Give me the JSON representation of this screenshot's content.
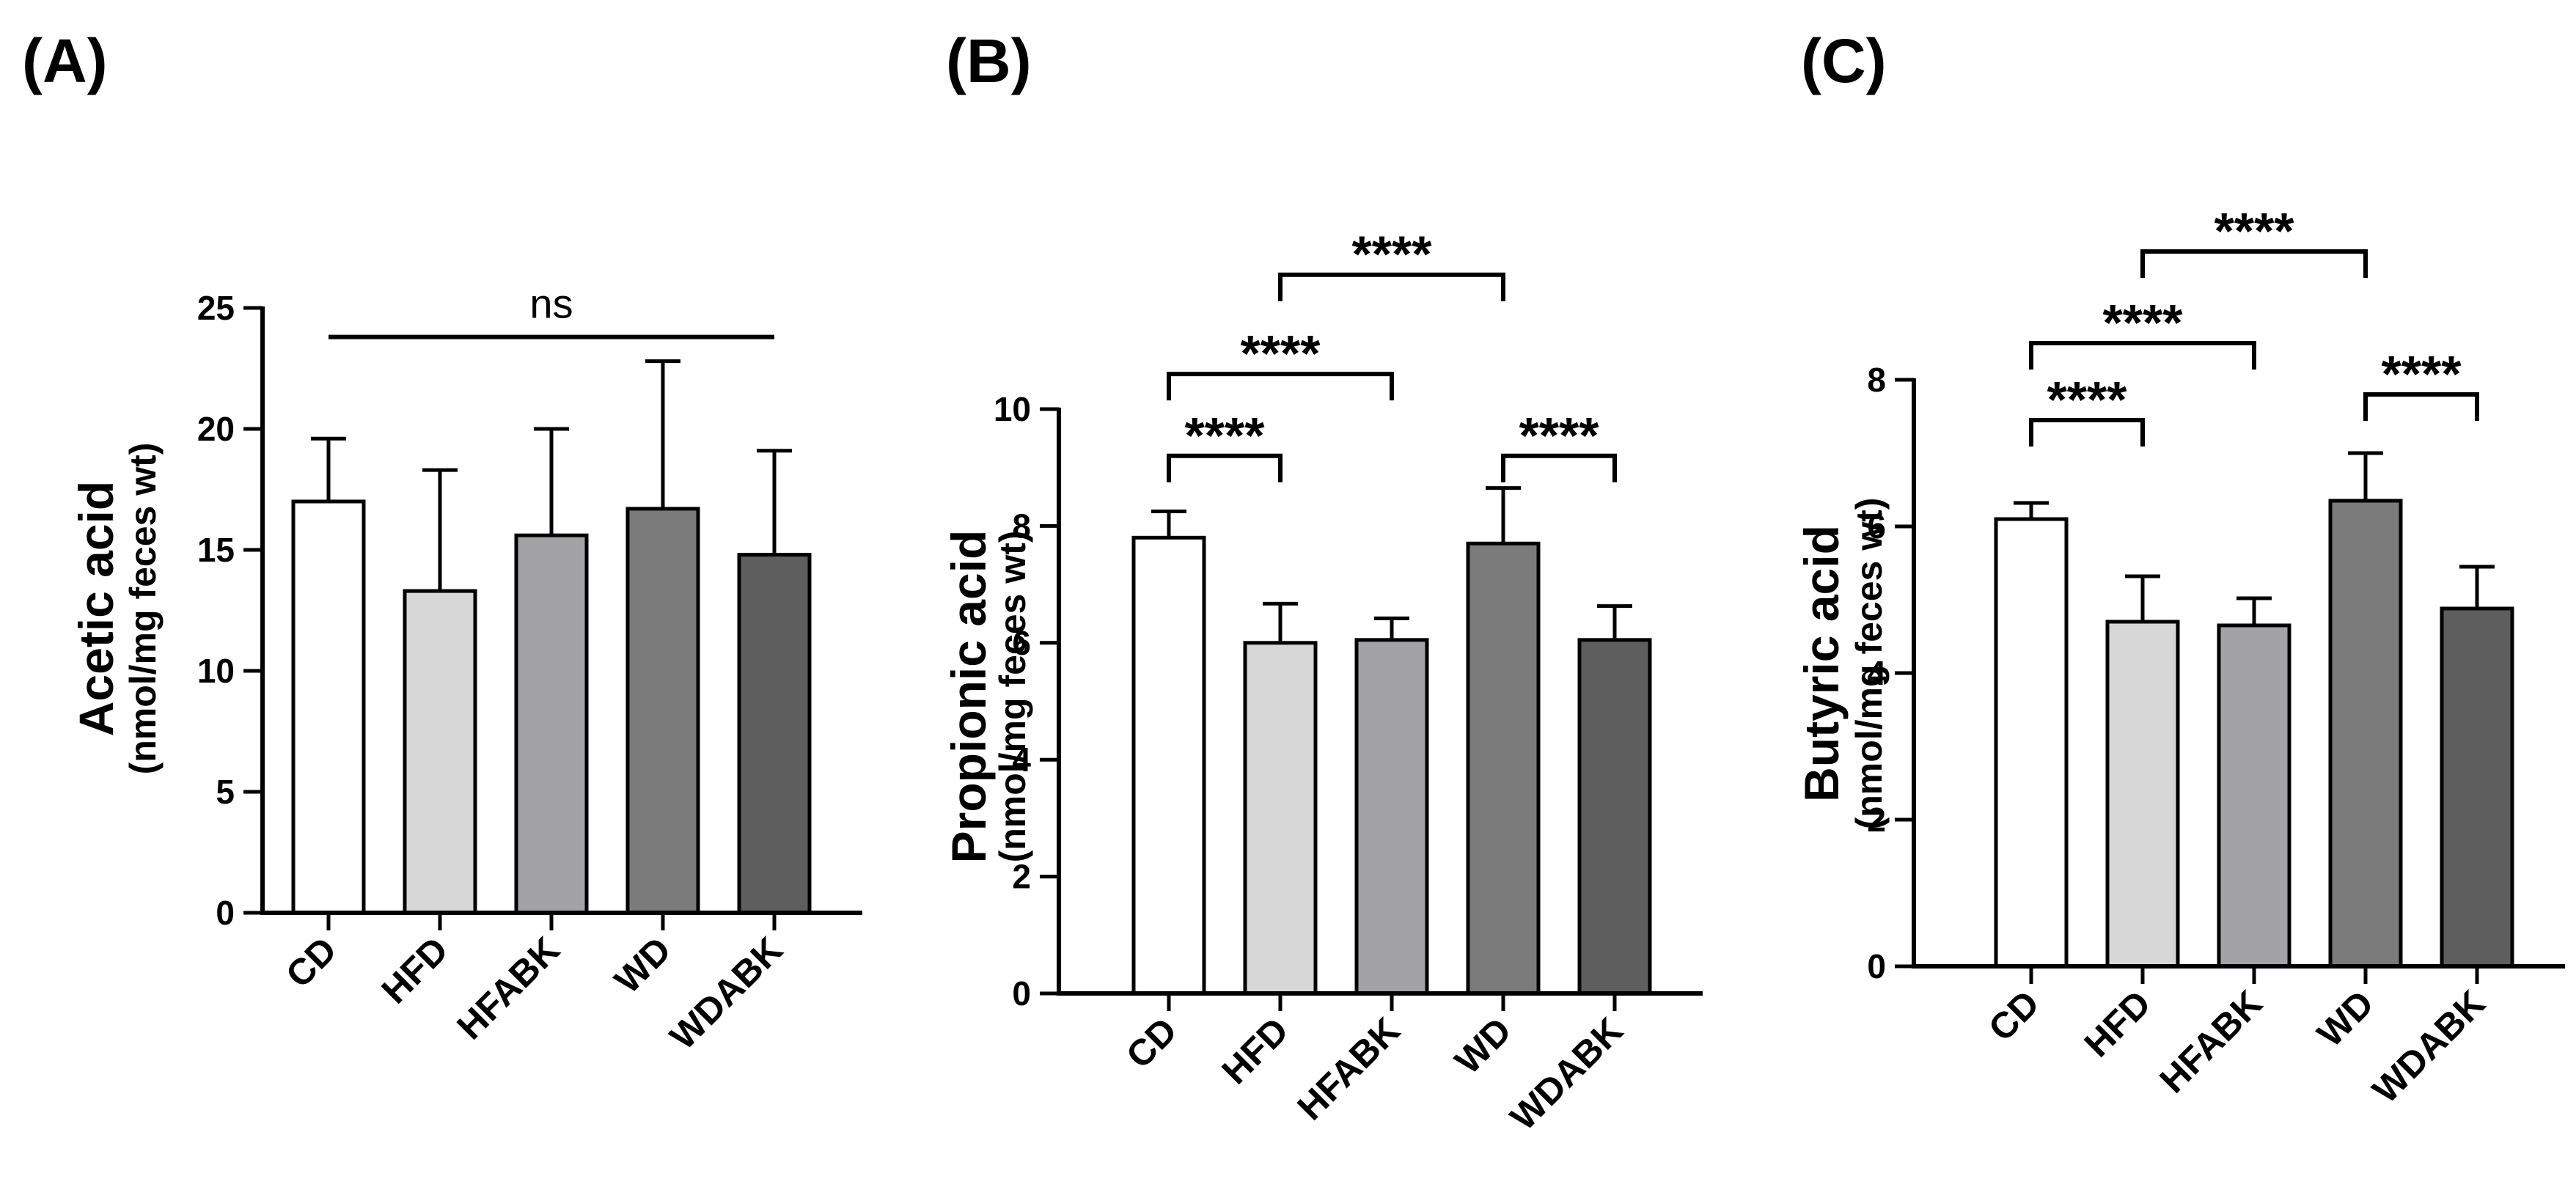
{
  "chart_data": [
    {
      "panel": "(A)",
      "type": "bar",
      "ylabel": "Acetic acid",
      "ylabel_sub": "(nmol/mg feces wt)",
      "categories": [
        "CD",
        "HFD",
        "HFABK",
        "WD",
        "WDABK"
      ],
      "values": [
        17.0,
        13.3,
        15.6,
        16.7,
        14.8
      ],
      "errors": [
        2.6,
        5.0,
        4.4,
        6.1,
        4.3
      ],
      "colors": [
        "#ffffff",
        "#d7d7d7",
        "#a3a3a6",
        "#7b7b7b",
        "#5e5e5e"
      ],
      "ylim": [
        0,
        25
      ],
      "yticks": [
        0,
        5,
        10,
        15,
        20,
        25
      ],
      "annotations": [
        {
          "type": "line",
          "from": 0,
          "to": 4,
          "label": "ns",
          "level": 23.8
        }
      ]
    },
    {
      "panel": "(B)",
      "type": "bar",
      "ylabel": "Propionic acid",
      "ylabel_sub": "(nmol/mg feces wt)",
      "categories": [
        "CD",
        "HFD",
        "HFABK",
        "WD",
        "WDABK"
      ],
      "values": [
        7.8,
        6.0,
        6.05,
        7.7,
        6.05
      ],
      "errors": [
        0.45,
        0.67,
        0.37,
        0.95,
        0.58
      ],
      "colors": [
        "#ffffff",
        "#d7d7d7",
        "#a3a3a6",
        "#7b7b7b",
        "#5e5e5e"
      ],
      "ylim": [
        0,
        10
      ],
      "yticks": [
        0,
        2,
        4,
        6,
        8,
        10
      ],
      "annotations": [
        {
          "type": "bracket",
          "from": 0,
          "to": 1,
          "label": "****",
          "level": 9.2
        },
        {
          "type": "bracket",
          "from": 0,
          "to": 2,
          "label": "****",
          "level": 10.6
        },
        {
          "type": "bracket",
          "from": 1,
          "to": 3,
          "label": "****",
          "level": 12.3
        },
        {
          "type": "bracket",
          "from": 3,
          "to": 4,
          "label": "****",
          "level": 9.2
        }
      ]
    },
    {
      "panel": "(C)",
      "type": "bar",
      "ylabel": "Butyric acid",
      "ylabel_sub": "(nmol/mg feces wt)",
      "categories": [
        "CD",
        "HFD",
        "HFABK",
        "WD",
        "WDABK"
      ],
      "values": [
        6.1,
        4.7,
        4.65,
        6.35,
        4.88
      ],
      "errors": [
        0.22,
        0.62,
        0.37,
        0.65,
        0.57
      ],
      "colors": [
        "#ffffff",
        "#d7d7d7",
        "#a3a3a6",
        "#7b7b7b",
        "#5e5e5e"
      ],
      "ylim": [
        0,
        8
      ],
      "yticks": [
        0,
        2,
        4,
        6,
        8
      ],
      "annotations": [
        {
          "type": "bracket",
          "from": 0,
          "to": 1,
          "label": "****",
          "level": 7.45
        },
        {
          "type": "bracket",
          "from": 0,
          "to": 2,
          "label": "****",
          "level": 8.5
        },
        {
          "type": "bracket",
          "from": 1,
          "to": 3,
          "label": "****",
          "level": 9.75
        },
        {
          "type": "bracket",
          "from": 3,
          "to": 4,
          "label": "****",
          "level": 7.8
        }
      ]
    }
  ]
}
